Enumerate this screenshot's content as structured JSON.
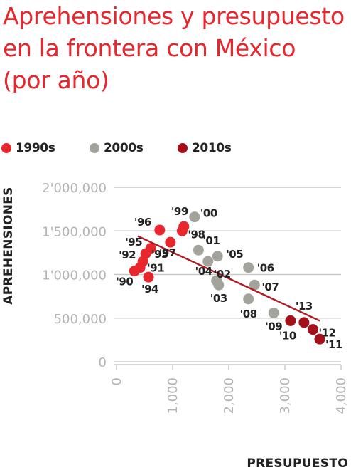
{
  "chart_data": {
    "type": "scatter",
    "title": "Aprehensiones y presupuesto en la frontera con México (por año)",
    "xlabel": "PRESUPUESTO",
    "ylabel": "APREHENSIONES",
    "xlim": [
      0,
      4000
    ],
    "ylim": [
      0,
      2000000
    ],
    "x_ticks": [
      0,
      1000,
      2000,
      3000,
      4000
    ],
    "x_tick_labels": [
      "0",
      "1,000",
      "2,000",
      "3,000",
      "4,000"
    ],
    "y_ticks": [
      0,
      500000,
      1000000,
      1500000,
      2000000
    ],
    "y_tick_labels": [
      "0",
      "500,000",
      "1'000,000",
      "1'500,000",
      "2'000,000"
    ],
    "grid": "horizontal",
    "legend": "top-left",
    "series": [
      {
        "name": "1990s",
        "color": "#e8262d",
        "points": [
          {
            "label": "'90",
            "x": 320,
            "y": 1040000
          },
          {
            "label": "'91",
            "x": 420,
            "y": 1080000
          },
          {
            "label": "'92",
            "x": 470,
            "y": 1150000
          },
          {
            "label": "'93",
            "x": 520,
            "y": 1240000
          },
          {
            "label": "'94",
            "x": 570,
            "y": 970000
          },
          {
            "label": "'95",
            "x": 610,
            "y": 1300000
          },
          {
            "label": "'96",
            "x": 770,
            "y": 1510000
          },
          {
            "label": "'97",
            "x": 960,
            "y": 1370000
          },
          {
            "label": "'98",
            "x": 1170,
            "y": 1500000
          },
          {
            "label": "'99",
            "x": 1200,
            "y": 1550000
          }
        ]
      },
      {
        "name": "2000s",
        "color": "#a3a39c",
        "points": [
          {
            "label": "'00",
            "x": 1390,
            "y": 1660000
          },
          {
            "label": "'01",
            "x": 1460,
            "y": 1280000
          },
          {
            "label": "'02",
            "x": 1630,
            "y": 1150000
          },
          {
            "label": "'03",
            "x": 1820,
            "y": 880000
          },
          {
            "label": "'04",
            "x": 1780,
            "y": 930000
          },
          {
            "label": "'05",
            "x": 1800,
            "y": 1210000
          },
          {
            "label": "'06",
            "x": 2350,
            "y": 1080000
          },
          {
            "label": "'07",
            "x": 2460,
            "y": 880000
          },
          {
            "label": "'08",
            "x": 2350,
            "y": 720000
          },
          {
            "label": "'09",
            "x": 2800,
            "y": 560000
          }
        ]
      },
      {
        "name": "2010s",
        "color": "#a50f1a",
        "points": [
          {
            "label": "'10",
            "x": 3100,
            "y": 470000
          },
          {
            "label": "'11",
            "x": 3620,
            "y": 260000
          },
          {
            "label": "'12",
            "x": 3500,
            "y": 370000
          },
          {
            "label": "'13",
            "x": 3340,
            "y": 450000
          }
        ]
      }
    ],
    "trendline": {
      "x1": 380,
      "y1": 1440000,
      "x2": 3620,
      "y2": 470000,
      "color": "#b01c24"
    }
  },
  "legend_items": [
    {
      "label": "1990s",
      "color": "#e8262d"
    },
    {
      "label": "2000s",
      "color": "#a3a39c"
    },
    {
      "label": "2010s",
      "color": "#a50f1a"
    }
  ]
}
